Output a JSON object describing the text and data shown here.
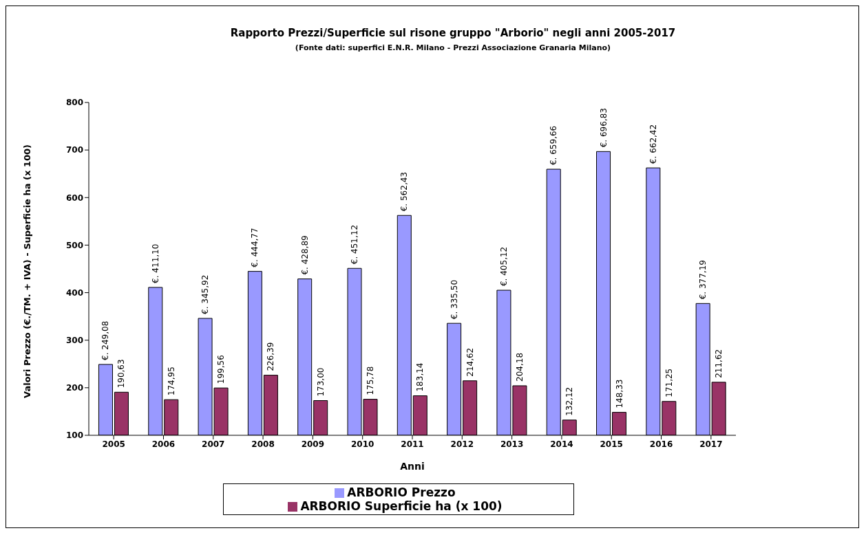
{
  "chart_data": {
    "type": "bar",
    "title": "Rapporto Prezzi/Superficie sul risone gruppo \"Arborio\" negli anni 2005-2017",
    "subtitle": "(Fonte dati: superfici E.N.R. Milano - Prezzi Associazione Granaria Milano)",
    "xlabel": "Anni",
    "ylabel": "Valori Prezzo (€./TM. + IVA) - Superficie ha (x 100)",
    "categories": [
      "2005",
      "2006",
      "2007",
      "2008",
      "2009",
      "2010",
      "2011",
      "2012",
      "2013",
      "2014",
      "2015",
      "2016",
      "2017"
    ],
    "series": [
      {
        "name": "ARBORIO Prezzo",
        "color": "#9999ff",
        "values": [
          249.08,
          411.1,
          345.92,
          444.77,
          428.89,
          451.12,
          562.43,
          335.5,
          405.12,
          659.66,
          696.83,
          662.42,
          377.19
        ],
        "value_labels": [
          "€. 249,08",
          "€. 411,10",
          "€. 345,92",
          "€. 444,77",
          "€. 428,89",
          "€. 451,12",
          "€. 562,43",
          "€. 335,50",
          "€. 405,12",
          "€. 659,66",
          "€. 696,83",
          "€. 662,42",
          "€. 377,19"
        ]
      },
      {
        "name": "ARBORIO Superficie ha (x 100)",
        "color": "#993366",
        "values": [
          190.63,
          174.95,
          199.56,
          226.39,
          173.0,
          175.78,
          183.14,
          214.62,
          204.18,
          132.12,
          148.33,
          171.25,
          211.62
        ],
        "value_labels": [
          "190,63",
          "174,95",
          "199,56",
          "226,39",
          "173,00",
          "175,78",
          "183,14",
          "214,62",
          "204,18",
          "132,12",
          "148,33",
          "171,25",
          "211,62"
        ]
      }
    ],
    "ylim": [
      100,
      800
    ],
    "yticks": [
      100,
      200,
      300,
      400,
      500,
      600,
      700,
      800
    ],
    "grid": false,
    "legend": "bottom"
  }
}
